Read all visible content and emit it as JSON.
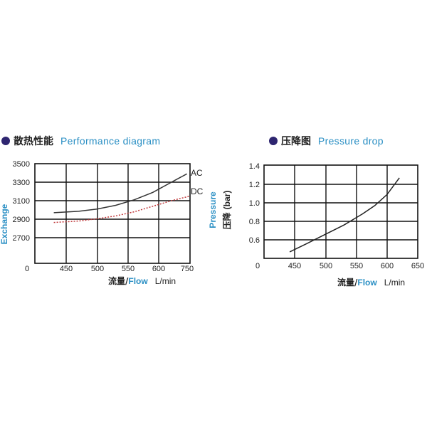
{
  "headings": {
    "performance": {
      "cn": "散热性能",
      "en": "Performance diagram"
    },
    "pressure": {
      "cn": "压降图",
      "en": "Pressure drop"
    }
  },
  "colors": {
    "heading_dot": "#2e2570",
    "english_label": "#2a8fc4",
    "ac_line": "#333333",
    "dc_line": "#c0393b"
  },
  "chart_data": [
    {
      "type": "line",
      "title": "散热性能 Performance diagram",
      "xlabel": {
        "cn": "流量/",
        "en": "Flow",
        "unit": "L/min"
      },
      "ylabel": "Exchange",
      "x_ticks": [
        "450",
        "500",
        "550",
        "600",
        "750"
      ],
      "y_ticks": [
        "2700",
        "2900",
        "3100",
        "3300",
        "3500"
      ],
      "origin_label": "0",
      "grid": true,
      "series": [
        {
          "name": "AC",
          "x": [
            430,
            470,
            500,
            530,
            560,
            590,
            620,
            645
          ],
          "y": [
            2970,
            2985,
            3010,
            3050,
            3110,
            3190,
            3300,
            3390
          ]
        },
        {
          "name": "DC",
          "x": [
            430,
            470,
            500,
            530,
            560,
            590,
            620,
            650
          ],
          "y": [
            2865,
            2880,
            2905,
            2935,
            2980,
            3040,
            3100,
            3150
          ]
        }
      ]
    },
    {
      "type": "line",
      "title": "压降图 Pressure drop",
      "xlabel": {
        "cn": "流量/",
        "en": "Flow",
        "unit": "L/min"
      },
      "ylabel": {
        "cn": "压降",
        "unit": "(bar)",
        "en": "Pressure"
      },
      "x_ticks": [
        "450",
        "500",
        "550",
        "600",
        "650"
      ],
      "y_ticks": [
        "0.6",
        "0.8",
        "1.0",
        "1.2",
        "1.4"
      ],
      "origin_label": "0",
      "grid": true,
      "series": [
        {
          "name": "",
          "x": [
            442,
            470,
            500,
            530,
            560,
            580,
            600,
            620
          ],
          "y": [
            0.47,
            0.56,
            0.66,
            0.76,
            0.88,
            0.97,
            1.09,
            1.27
          ]
        }
      ]
    }
  ]
}
